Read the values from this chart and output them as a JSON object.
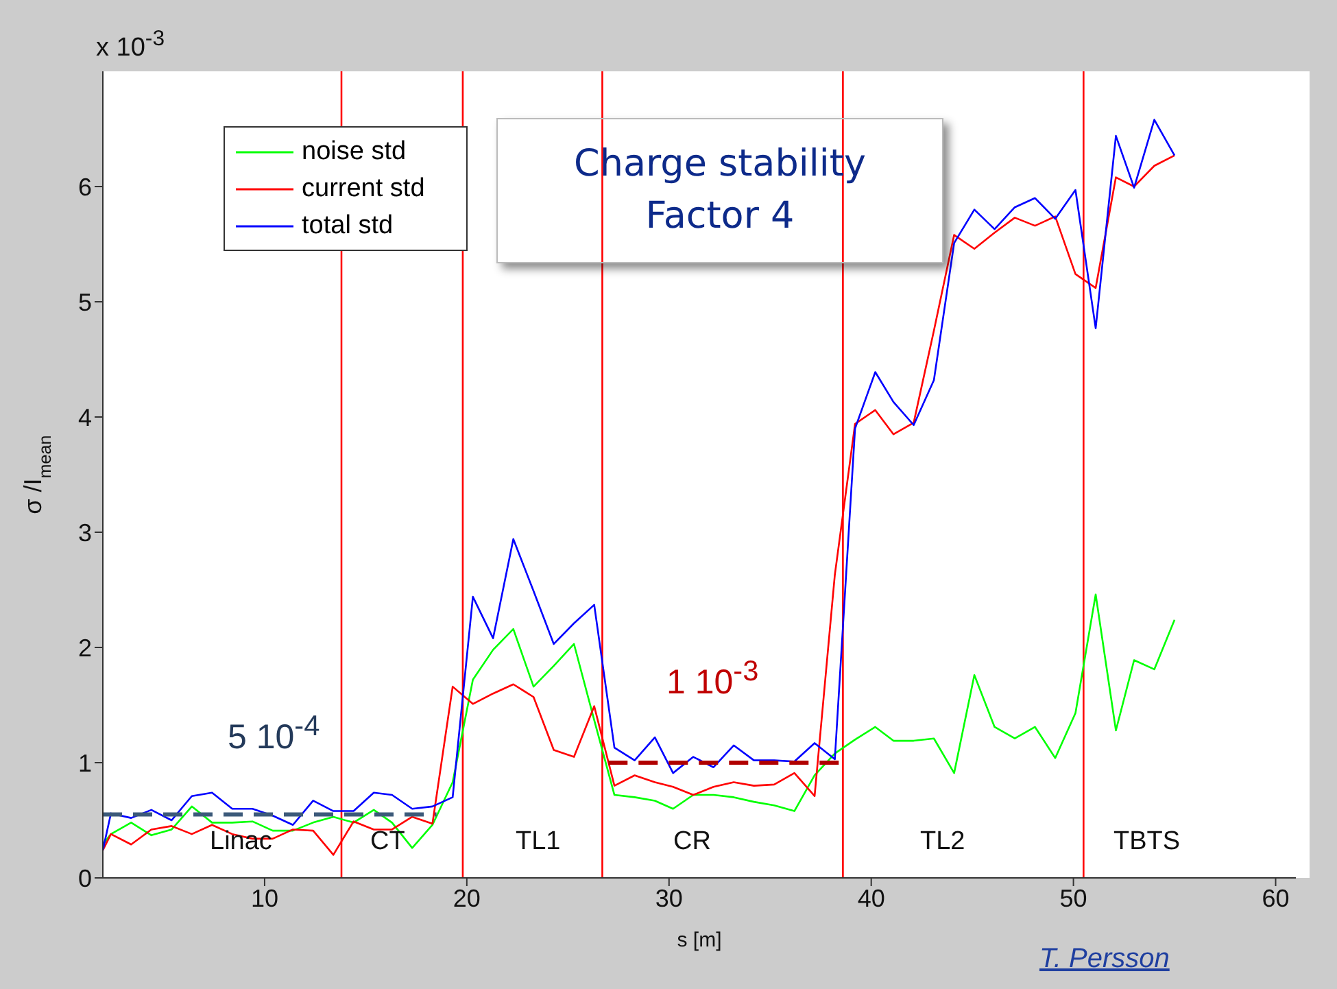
{
  "chart_data": {
    "type": "line",
    "title": "Charge stability\nFactor 4",
    "xlabel": "s [m]",
    "ylabel": "σ /I$_{mean}$",
    "xlim": [
      2,
      61
    ],
    "xticks": [
      10,
      20,
      30,
      40,
      50,
      60
    ],
    "ylim": [
      0,
      7
    ],
    "yticks": [
      0,
      1,
      2,
      3,
      4,
      5,
      6
    ],
    "legend": "top left",
    "marker": "none",
    "line_style": "solid",
    "x": [
      2.0,
      2.4,
      3.4,
      4.4,
      5.4,
      6.4,
      7.4,
      8.4,
      9.4,
      10.4,
      11.4,
      12.4,
      13.4,
      14.4,
      15.4,
      16.3,
      17.3,
      18.3,
      19.3,
      20.3,
      21.3,
      22.3,
      23.3,
      24.3,
      25.3,
      26.3,
      27.3,
      28.3,
      29.3,
      30.2,
      31.2,
      32.2,
      33.2,
      34.2,
      35.2,
      36.2,
      37.2,
      38.2,
      39.2,
      40.2,
      41.1,
      42.1,
      43.1,
      44.1,
      45.1,
      46.1,
      47.1,
      48.1,
      49.1,
      50.1,
      51.1,
      52.1,
      53.0,
      54.0,
      55.0
    ],
    "series": [
      {
        "name": "noise std",
        "color": "#00ff00",
        "values": [
          0.29,
          0.38,
          0.48,
          0.37,
          0.42,
          0.62,
          0.48,
          0.48,
          0.49,
          0.41,
          0.41,
          0.48,
          0.53,
          0.48,
          0.59,
          0.48,
          0.26,
          0.46,
          0.83,
          1.72,
          1.98,
          2.16,
          1.66,
          1.84,
          2.03,
          1.37,
          0.72,
          0.7,
          0.67,
          0.6,
          0.72,
          0.72,
          0.7,
          0.66,
          0.63,
          0.58,
          0.89,
          1.08,
          1.2,
          1.31,
          1.19,
          1.19,
          1.21,
          0.91,
          1.76,
          1.31,
          1.21,
          1.31,
          1.04,
          1.43,
          2.46,
          1.28,
          1.89,
          1.81,
          2.24
        ]
      },
      {
        "name": "current std",
        "color": "#ff0000",
        "values": [
          0.24,
          0.38,
          0.29,
          0.42,
          0.45,
          0.38,
          0.46,
          0.38,
          0.34,
          0.34,
          0.42,
          0.41,
          0.2,
          0.49,
          0.42,
          0.42,
          0.53,
          0.47,
          1.66,
          1.51,
          1.6,
          1.68,
          1.57,
          1.11,
          1.05,
          1.49,
          0.8,
          0.89,
          0.83,
          0.79,
          0.72,
          0.79,
          0.83,
          0.8,
          0.81,
          0.91,
          0.71,
          2.63,
          3.94,
          4.06,
          3.85,
          3.95,
          4.75,
          5.58,
          5.46,
          5.6,
          5.73,
          5.66,
          5.74,
          5.24,
          5.12,
          6.08,
          6.0,
          6.18,
          6.27
        ]
      },
      {
        "name": "total std",
        "color": "#0000ff",
        "values": [
          0.24,
          0.56,
          0.52,
          0.59,
          0.5,
          0.71,
          0.74,
          0.6,
          0.6,
          0.54,
          0.46,
          0.67,
          0.58,
          0.58,
          0.74,
          0.72,
          0.6,
          0.62,
          0.7,
          2.44,
          2.08,
          2.94,
          2.49,
          2.03,
          2.21,
          2.37,
          1.13,
          1.02,
          1.22,
          0.91,
          1.05,
          0.96,
          1.15,
          1.02,
          1.02,
          1.01,
          1.17,
          1.03,
          3.9,
          4.39,
          4.13,
          3.93,
          4.32,
          5.51,
          5.8,
          5.63,
          5.82,
          5.9,
          5.72,
          5.97,
          4.77,
          6.44,
          5.99,
          6.58,
          6.27
        ]
      },
      {
        "type": "line",
        "x": [
          2,
          18.5
        ],
        "values": [
          0.55,
          0.55
        ],
        "color": "#3c5a7a",
        "line_style": "dashed"
      },
      {
        "type": "line",
        "x": [
          27,
          38.5
        ],
        "values": [
          1,
          1
        ],
        "color": "#b00000",
        "line_style": "dashed"
      }
    ],
    "ref_lines": [
      {
        "axis": "x",
        "value": 13.8,
        "color": "#ff0000"
      },
      {
        "axis": "x",
        "value": 19.8,
        "color": "#ff0000"
      },
      {
        "axis": "x",
        "value": 26.7,
        "color": "#ff0000"
      },
      {
        "axis": "x",
        "value": 38.6,
        "color": "#ff0000"
      },
      {
        "axis": "x",
        "value": 50.5,
        "color": "#ff0000"
      }
    ],
    "annotations": [
      "x 10$^{-3}$",
      "T. Persson",
      "5 10$^{-4}$",
      "1 10$^{-3}$",
      "Linac",
      "CT",
      "TL1",
      "CR",
      "TL2",
      "TBTS"
    ]
  }
}
